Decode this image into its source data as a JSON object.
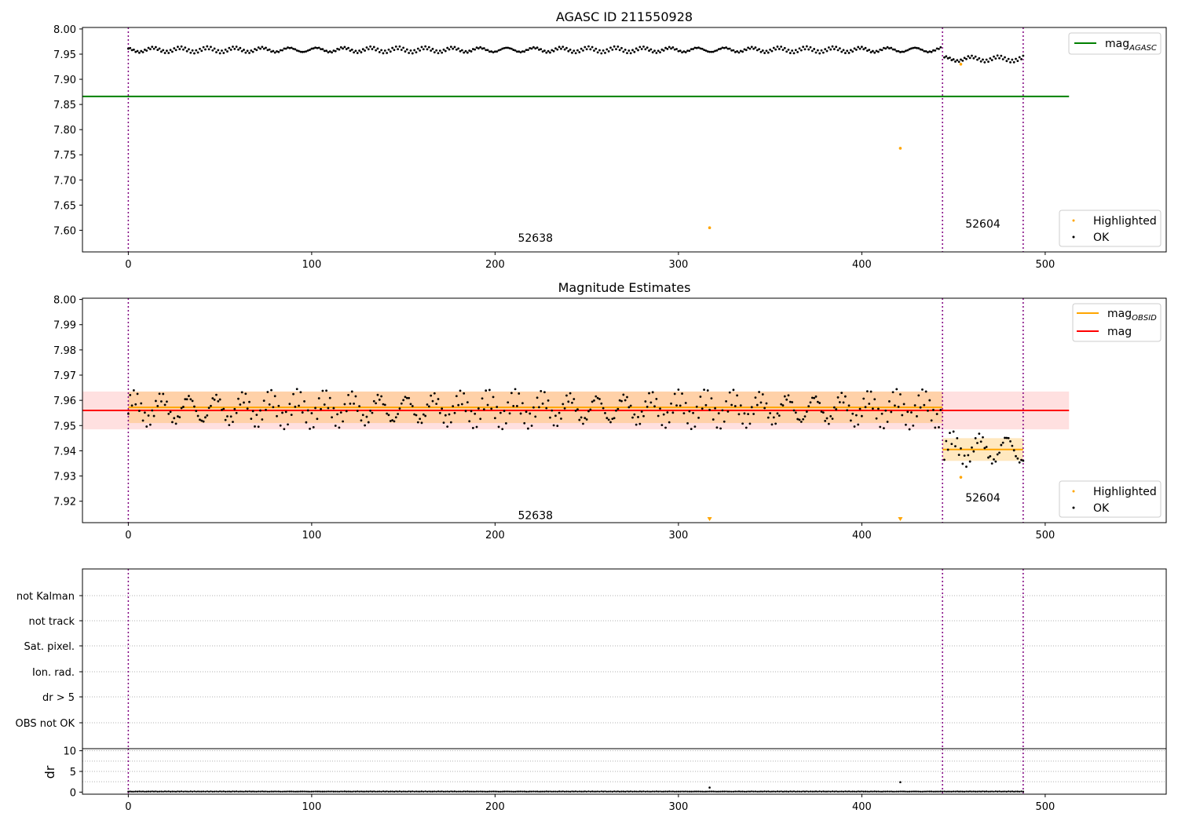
{
  "chart_data": [
    {
      "type": "scatter",
      "title": "AGASC ID 211550928",
      "xlim": [
        -25,
        566
      ],
      "ylim": [
        7.557,
        8.003
      ],
      "xticks": [
        0,
        100,
        200,
        300,
        400,
        500
      ],
      "yticks": [
        7.6,
        7.65,
        7.7,
        7.75,
        7.8,
        7.85,
        7.9,
        7.95,
        8.0
      ],
      "vlines": [
        0,
        444,
        488
      ],
      "annotations": [
        {
          "text": "52638",
          "x": 222,
          "y": 7.585
        },
        {
          "text": "52604",
          "x": 466,
          "y": 7.613
        }
      ],
      "lines": [
        {
          "name": "mag_AGASC",
          "y": 7.866,
          "x0": -25,
          "x1": 513,
          "color": "#008000"
        }
      ],
      "legend_top": {
        "entry": "mag",
        "sub": "AGASC",
        "position": "top-right"
      },
      "legend_bottom": {
        "entries": [
          "Highlighted",
          "OK"
        ],
        "position": "bottom-right"
      },
      "series": [
        {
          "name": "OK",
          "color": "#000000",
          "segments": [
            {
              "x0": 0,
              "x1": 443,
              "y0": 7.9585,
              "y1": 7.9585
            },
            {
              "x0": 445,
              "x1": 488,
              "y0": 7.9405,
              "y1": 7.9405
            }
          ]
        },
        {
          "name": "Highlighted",
          "color": "#FFA500",
          "points": [
            [
              317,
              7.605
            ],
            [
              421,
              7.763
            ],
            [
              454,
              7.93
            ]
          ]
        }
      ]
    },
    {
      "type": "scatter",
      "title": "Magnitude Estimates",
      "xlim": [
        -25,
        566
      ],
      "ylim": [
        7.9115,
        8.0005
      ],
      "xticks": [
        0,
        100,
        200,
        300,
        400,
        500
      ],
      "yticks": [
        7.92,
        7.93,
        7.94,
        7.95,
        7.96,
        7.97,
        7.98,
        7.99,
        8.0
      ],
      "vlines": [
        0,
        444,
        488
      ],
      "annotations": [
        {
          "text": "52638",
          "x": 222,
          "y": 7.9145
        },
        {
          "text": "52604",
          "x": 466,
          "y": 7.9215
        }
      ],
      "bands": [
        {
          "name": "mag",
          "y0": 7.9485,
          "y1": 7.9635,
          "x0": -25,
          "x1": 513,
          "color": "#ff0000",
          "opacity": 0.12
        },
        {
          "name": "mag_OBSID 52638",
          "y0": 7.951,
          "y1": 7.9635,
          "x0": 0,
          "x1": 444,
          "color": "#ffa500",
          "opacity": 0.25
        },
        {
          "name": "mag_OBSID 52604",
          "y0": 7.936,
          "y1": 7.945,
          "x0": 444,
          "x1": 488,
          "color": "#ffa500",
          "opacity": 0.25
        }
      ],
      "lines": [
        {
          "name": "mag",
          "y": 7.956,
          "x0": -25,
          "x1": 513,
          "color": "#ff0000"
        },
        {
          "name": "mag_OBSID",
          "y": 7.9572,
          "x0": 0,
          "x1": 444,
          "color": "#ffa500"
        },
        {
          "name": "mag_OBSID",
          "y": 7.9405,
          "x0": 444,
          "x1": 488,
          "color": "#ffa500"
        }
      ],
      "legend_top": {
        "entries": [
          "mag",
          "mag"
        ],
        "sub": "OBSID",
        "position": "top-right"
      },
      "legend_bottom": {
        "entries": [
          "Highlighted",
          "OK"
        ],
        "position": "bottom-right"
      },
      "series": [
        {
          "name": "OK",
          "color": "#000000",
          "segments": [
            {
              "x0": 0,
              "x1": 443,
              "y0": 7.9565,
              "y1": 7.9565
            },
            {
              "x0": 445,
              "x1": 488,
              "y0": 7.9405,
              "y1": 7.9405
            }
          ]
        },
        {
          "name": "Highlighted",
          "color": "#FFA500",
          "points": [
            [
              454,
              7.9295
            ]
          ],
          "markers_below": [
            317,
            421
          ]
        }
      ]
    },
    {
      "type": "table",
      "xlim": [
        -25,
        566
      ],
      "rows": [
        "not Kalman",
        "not track",
        "Sat. pixel.",
        "Ion. rad.",
        "dr > 5",
        "OBS not OK"
      ],
      "vlines": [
        0,
        444,
        488
      ]
    },
    {
      "type": "scatter",
      "ylabel": "dr",
      "xlim": [
        -25,
        566
      ],
      "ylim": [
        -0.5,
        10.5
      ],
      "xticks": [
        0,
        100,
        200,
        300,
        400,
        500
      ],
      "yticks": [
        0,
        5,
        10
      ],
      "vlines": [
        0,
        444,
        488
      ],
      "series": [
        {
          "name": "dr",
          "color": "#000000",
          "baseline": 0.1,
          "x0": 0,
          "x1": 488,
          "spikes": [
            [
              317,
              1.1
            ],
            [
              421,
              2.4
            ]
          ]
        }
      ]
    }
  ]
}
